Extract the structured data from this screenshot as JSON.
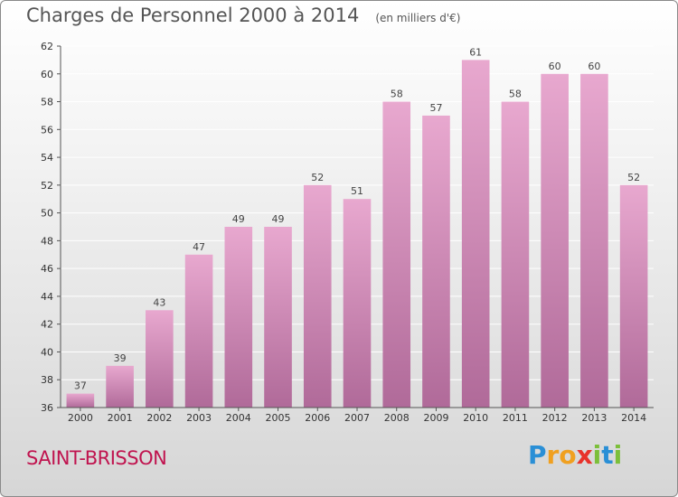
{
  "title": "Charges de Personnel 2000 à 2014",
  "subtitle": "(en milliers d'€)",
  "city": "SAINT-BRISSON",
  "logo": {
    "letters": [
      "P",
      "r",
      "o",
      "x",
      "i",
      "t",
      "i"
    ],
    "colors": [
      "#2a8fd6",
      "#f0a020",
      "#f0a020",
      "#e8322b",
      "#7cbf3a",
      "#2a8fd6",
      "#7cbf3a"
    ]
  },
  "colors": {
    "bar_top": "#e8a8cf",
    "bar_bottom": "#b06a99",
    "grid": "#ffffff",
    "axis": "#555555"
  },
  "chart_data": {
    "type": "bar",
    "categories": [
      "2000",
      "2001",
      "2002",
      "2003",
      "2004",
      "2005",
      "2006",
      "2007",
      "2008",
      "2009",
      "2010",
      "2011",
      "2012",
      "2013",
      "2014"
    ],
    "values": [
      37,
      39,
      43,
      47,
      49,
      49,
      52,
      51,
      58,
      57,
      61,
      58,
      60,
      60,
      52
    ],
    "yticks": [
      36,
      38,
      40,
      42,
      44,
      46,
      48,
      50,
      52,
      54,
      56,
      58,
      60,
      62
    ],
    "ylim": [
      36,
      62
    ],
    "grid": true,
    "xlabel": "",
    "ylabel": ""
  }
}
